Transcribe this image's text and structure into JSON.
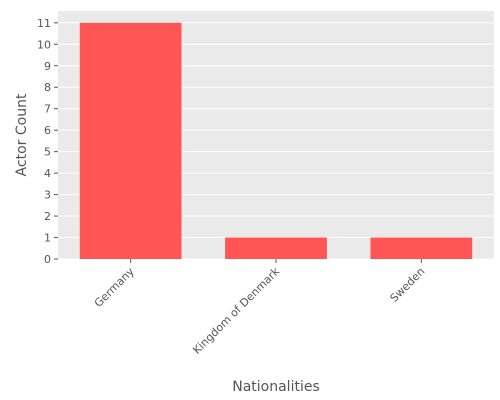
{
  "chart_data": {
    "type": "bar",
    "categories": [
      "Germany",
      "Kingdom of Denmark",
      "Sweden"
    ],
    "values": [
      11,
      1,
      1
    ],
    "title": "",
    "xlabel": "Nationalities",
    "ylabel": "Actor Count",
    "ylim": [
      0,
      11.55
    ],
    "yticks": [
      0,
      1,
      2,
      3,
      4,
      5,
      6,
      7,
      8,
      9,
      10,
      11
    ],
    "grid": true,
    "colors": {
      "bar": "#FF5555",
      "plot_background": "#EAEAEA",
      "grid": "#FFFFFF",
      "text": "#555555"
    }
  }
}
